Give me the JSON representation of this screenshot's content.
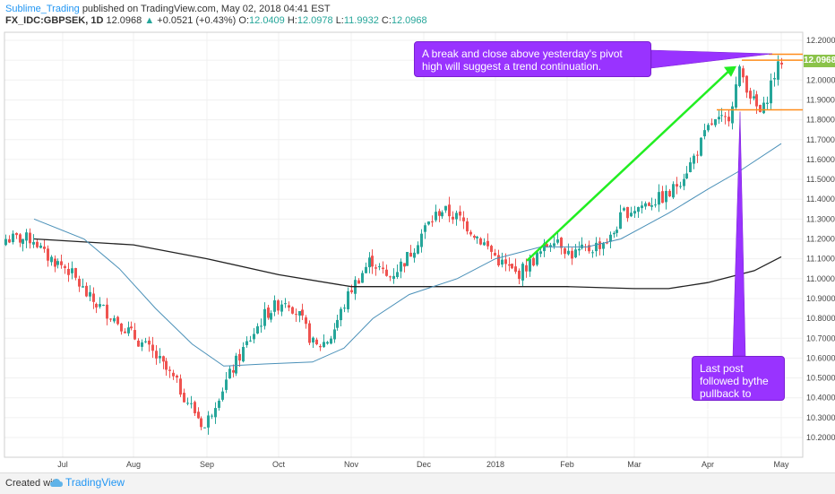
{
  "header": {
    "author": "Sublime_Trading",
    "published": "published on TradingView.com, May 02, 2018 04:41 EST",
    "symbol": "FX_IDC:GBPSEK, 1D",
    "last": "12.0968",
    "change": "+0.0521 (+0.43%)",
    "open_label": "O:",
    "open": "12.0409",
    "high_label": "H:",
    "high": "12.0978",
    "low_label": "L:",
    "low": "11.9932",
    "close_label": "C:",
    "close": "12.0968"
  },
  "annotations": {
    "note1": "A break and close above yesterday's pivot high will suggest a trend  continuation.",
    "note2": "Last post followed bythe pullback to support."
  },
  "price_tag": "12.0968",
  "footer": {
    "created": "Created with",
    "brand": "TradingView"
  },
  "colors": {
    "up": "#26a69a",
    "down": "#ef5350",
    "ma_slow": "#222222",
    "ma_fast": "#4a90b8",
    "arrow": "#22ee22",
    "note": "#9933ff",
    "level": "#ff8c1a"
  },
  "chart_data": {
    "type": "candlestick",
    "x_tick_labels": [
      "Jul",
      "Aug",
      "Sep",
      "Oct",
      "Nov",
      "Dec",
      "2018",
      "Feb",
      "Mar",
      "Apr",
      "May"
    ],
    "y_tick_labels": [
      "12.2000",
      "12.1000",
      "12.0000",
      "11.9000",
      "11.8000",
      "11.7000",
      "11.6000",
      "11.5000",
      "11.4000",
      "11.3000",
      "11.2000",
      "11.1000",
      "11.0000",
      "10.9000",
      "10.8000",
      "10.7000",
      "10.6000",
      "10.5000",
      "10.4000",
      "10.3000",
      "10.2000"
    ],
    "ylim": [
      10.12,
      12.26
    ],
    "path": [
      [
        "Jun-19",
        11.2
      ],
      [
        "Jun-23",
        11.12
      ],
      [
        "Jul-03",
        11.05
      ],
      [
        "Jul-12",
        10.9
      ],
      [
        "Jul-21",
        10.82
      ],
      [
        "Jul-30",
        10.72
      ],
      [
        "Aug-09",
        10.62
      ],
      [
        "Aug-18",
        10.48
      ],
      [
        "Aug-23",
        10.38
      ],
      [
        "Aug-30",
        10.25
      ],
      [
        "Sep-05",
        10.4
      ],
      [
        "Sep-15",
        10.62
      ],
      [
        "Sep-25",
        10.82
      ],
      [
        "Oct-04",
        10.9
      ],
      [
        "Oct-10",
        10.8
      ],
      [
        "Oct-16",
        10.65
      ],
      [
        "Oct-22",
        10.7
      ],
      [
        "Nov-01",
        10.95
      ],
      [
        "Nov-09",
        11.1
      ],
      [
        "Nov-16",
        11.0
      ],
      [
        "Nov-25",
        11.12
      ],
      [
        "Dec-01",
        11.25
      ],
      [
        "Dec-08",
        11.35
      ],
      [
        "Dec-16",
        11.3
      ],
      [
        "Dec-26",
        11.18
      ],
      [
        "Jan-03",
        11.08
      ],
      [
        "Jan-10",
        11.02
      ],
      [
        "Jan-19",
        11.12
      ],
      [
        "Jan-26",
        11.22
      ],
      [
        "Feb-02",
        11.12
      ],
      [
        "Feb-11",
        11.15
      ],
      [
        "Feb-20",
        11.2
      ],
      [
        "Feb-26",
        11.33
      ],
      [
        "Mar-06",
        11.38
      ],
      [
        "Mar-15",
        11.42
      ],
      [
        "Mar-24",
        11.58
      ],
      [
        "Apr-02",
        11.78
      ],
      [
        "Apr-09",
        11.8
      ],
      [
        "Apr-14",
        12.05
      ],
      [
        "Apr-19",
        11.9
      ],
      [
        "Apr-23",
        11.82
      ],
      [
        "Apr-27",
        12.0
      ],
      [
        "May-01",
        12.1
      ]
    ],
    "ma_slow": [
      [
        "Jun-19",
        11.2
      ],
      [
        "Aug-01",
        11.17
      ],
      [
        "Sep-01",
        11.1
      ],
      [
        "Oct-01",
        11.02
      ],
      [
        "Nov-01",
        10.96
      ],
      [
        "Dec-01",
        10.96
      ],
      [
        "Jan-01",
        10.96
      ],
      [
        "Feb-01",
        10.96
      ],
      [
        "Mar-01",
        10.95
      ],
      [
        "Mar-15",
        10.95
      ],
      [
        "Apr-01",
        10.98
      ],
      [
        "Apr-20",
        11.04
      ],
      [
        "May-01",
        11.11
      ]
    ],
    "ma_fast": [
      [
        "Jun-19",
        11.3
      ],
      [
        "Jul-10",
        11.2
      ],
      [
        "Jul-25",
        11.05
      ],
      [
        "Aug-10",
        10.85
      ],
      [
        "Aug-25",
        10.67
      ],
      [
        "Sep-08",
        10.56
      ],
      [
        "Sep-25",
        10.57
      ],
      [
        "Oct-15",
        10.58
      ],
      [
        "Oct-28",
        10.65
      ],
      [
        "Nov-10",
        10.8
      ],
      [
        "Nov-25",
        10.92
      ],
      [
        "Dec-15",
        11.0
      ],
      [
        "Jan-01",
        11.1
      ],
      [
        "Jan-20",
        11.16
      ],
      [
        "Feb-10",
        11.16
      ],
      [
        "Feb-25",
        11.2
      ],
      [
        "Mar-15",
        11.33
      ],
      [
        "Apr-01",
        11.45
      ],
      [
        "Apr-15",
        11.55
      ],
      [
        "May-01",
        11.68
      ]
    ],
    "levels": {
      "pivot_high": 12.1,
      "resistance": 12.13,
      "support": 11.85
    },
    "last_price": 12.0968
  }
}
